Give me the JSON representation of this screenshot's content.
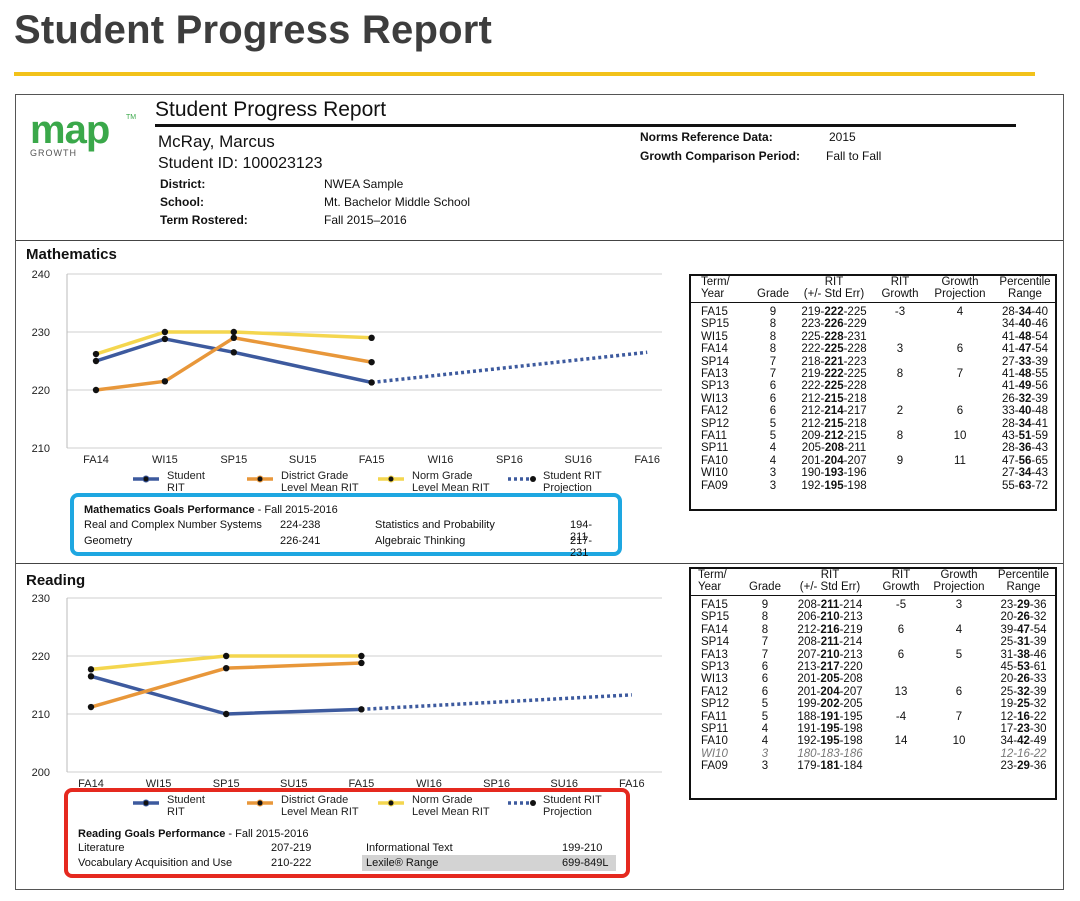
{
  "page_title": "Student Progress Report",
  "report": {
    "logo_text": "map",
    "logo_tm": "TM",
    "logo_sub": "GROWTH",
    "subtitle": "Student Progress Report",
    "student_name": "McRay, Marcus",
    "student_id": "Student ID: 100023123",
    "district_label": "District:",
    "district": "NWEA Sample",
    "school_label": "School:",
    "school": "Mt. Bachelor Middle School",
    "term_label": "Term Rostered:",
    "term": "Fall 2015–2016",
    "norms_label": "Norms Reference Data:",
    "norms": "2015",
    "growth_period_label": "Growth Comparison Period:",
    "growth_period": "Fall to Fall"
  },
  "legend": {
    "student_1": "Student",
    "student_2": "RIT",
    "district_1": "District Grade",
    "district_2": "Level Mean RIT",
    "norm_1": "Norm Grade",
    "norm_2": "Level Mean RIT",
    "proj_1": "Student RIT",
    "proj_2": "Projection"
  },
  "colors": {
    "student": "#3d5a9e",
    "district": "#e8973a",
    "norm": "#f4d64e",
    "highlight_math": "#1ea7e1",
    "highlight_reading": "#e5291f",
    "gold_rule": "#f2c21a"
  },
  "table_headers": {
    "term_1": "Term/",
    "term_2": "Year",
    "grade": "Grade",
    "rit_1": "RIT",
    "rit_2": "(+/- Std Err)",
    "ritg_1": "RIT",
    "ritg_2": "Growth",
    "gp_1": "Growth",
    "gp_2": "Projection",
    "pr_1": "Percentile",
    "pr_2": "Range"
  },
  "mathematics": {
    "title": "Mathematics",
    "table": [
      {
        "term": "FA15",
        "grade": "9",
        "rit": [
          "219-",
          "222",
          "-225"
        ],
        "growth": "-3",
        "proj": "4",
        "pct": [
          "28-",
          "34",
          "-40"
        ]
      },
      {
        "term": "SP15",
        "grade": "8",
        "rit": [
          "223-",
          "226",
          "-229"
        ],
        "growth": "",
        "proj": "",
        "pct": [
          "34-",
          "40",
          "-46"
        ]
      },
      {
        "term": "WI15",
        "grade": "8",
        "rit": [
          "225-",
          "228",
          "-231"
        ],
        "growth": "",
        "proj": "",
        "pct": [
          "41-",
          "48",
          "-54"
        ]
      },
      {
        "term": "FA14",
        "grade": "8",
        "rit": [
          "222-",
          "225",
          "-228"
        ],
        "growth": "3",
        "proj": "6",
        "pct": [
          "41-",
          "47",
          "-54"
        ]
      },
      {
        "term": "SP14",
        "grade": "7",
        "rit": [
          "218-",
          "221",
          "-223"
        ],
        "growth": "",
        "proj": "",
        "pct": [
          "27-",
          "33",
          "-39"
        ]
      },
      {
        "term": "FA13",
        "grade": "7",
        "rit": [
          "219-",
          "222",
          "-225"
        ],
        "growth": "8",
        "proj": "7",
        "pct": [
          "41-",
          "48",
          "-55"
        ]
      },
      {
        "term": "SP13",
        "grade": "6",
        "rit": [
          "222-",
          "225",
          "-228"
        ],
        "growth": "",
        "proj": "",
        "pct": [
          "41-",
          "49",
          "-56"
        ]
      },
      {
        "term": "WI13",
        "grade": "6",
        "rit": [
          "212-",
          "215",
          "-218"
        ],
        "growth": "",
        "proj": "",
        "pct": [
          "26-",
          "32",
          "-39"
        ]
      },
      {
        "term": "FA12",
        "grade": "6",
        "rit": [
          "212-",
          "214",
          "-217"
        ],
        "growth": "2",
        "proj": "6",
        "pct": [
          "33-",
          "40",
          "-48"
        ]
      },
      {
        "term": "SP12",
        "grade": "5",
        "rit": [
          "212-",
          "215",
          "-218"
        ],
        "growth": "",
        "proj": "",
        "pct": [
          "28-",
          "34",
          "-41"
        ]
      },
      {
        "term": "FA11",
        "grade": "5",
        "rit": [
          "209-",
          "212",
          "-215"
        ],
        "growth": "8",
        "proj": "10",
        "pct": [
          "43-",
          "51",
          "-59"
        ]
      },
      {
        "term": "SP11",
        "grade": "4",
        "rit": [
          "205-",
          "208",
          "-211"
        ],
        "growth": "",
        "proj": "",
        "pct": [
          "28-",
          "36",
          "-43"
        ]
      },
      {
        "term": "FA10",
        "grade": "4",
        "rit": [
          "201-",
          "204",
          "-207"
        ],
        "growth": "9",
        "proj": "11",
        "pct": [
          "47-",
          "56",
          "-65"
        ]
      },
      {
        "term": "WI10",
        "grade": "3",
        "rit": [
          "190-",
          "193",
          "-196"
        ],
        "growth": "",
        "proj": "",
        "pct": [
          "27-",
          "34",
          "-43"
        ]
      },
      {
        "term": "FA09",
        "grade": "3",
        "rit": [
          "192-",
          "195",
          "-198"
        ],
        "growth": "",
        "proj": "",
        "pct": [
          "55-",
          "63",
          "-72"
        ]
      }
    ],
    "goals_title": "Mathematics Goals Performance",
    "goals_term": " - Fall 2015-2016",
    "goals": [
      {
        "name": "Real and Complex Number Systems",
        "range": "224-238"
      },
      {
        "name": "Statistics and Probability",
        "range": "194-211"
      },
      {
        "name": "Geometry",
        "range": "226-241"
      },
      {
        "name": "Algebraic Thinking",
        "range": "217-231"
      }
    ]
  },
  "reading": {
    "title": "Reading",
    "table": [
      {
        "term": "FA15",
        "grade": "9",
        "rit": [
          "208-",
          "211",
          "-214"
        ],
        "growth": "-5",
        "proj": "3",
        "pct": [
          "23-",
          "29",
          "-36"
        ]
      },
      {
        "term": "SP15",
        "grade": "8",
        "rit": [
          "206-",
          "210",
          "-213"
        ],
        "growth": "",
        "proj": "",
        "pct": [
          "20-",
          "26",
          "-32"
        ]
      },
      {
        "term": "FA14",
        "grade": "8",
        "rit": [
          "212-",
          "216",
          "-219"
        ],
        "growth": "6",
        "proj": "4",
        "pct": [
          "39-",
          "47",
          "-54"
        ]
      },
      {
        "term": "SP14",
        "grade": "7",
        "rit": [
          "208-",
          "211",
          "-214"
        ],
        "growth": "",
        "proj": "",
        "pct": [
          "25-",
          "31",
          "-39"
        ]
      },
      {
        "term": "FA13",
        "grade": "7",
        "rit": [
          "207-",
          "210",
          "-213"
        ],
        "growth": "6",
        "proj": "5",
        "pct": [
          "31-",
          "38",
          "-46"
        ]
      },
      {
        "term": "SP13",
        "grade": "6",
        "rit": [
          "213-",
          "217",
          "-220"
        ],
        "growth": "",
        "proj": "",
        "pct": [
          "45-",
          "53",
          "-61"
        ]
      },
      {
        "term": "WI13",
        "grade": "6",
        "rit": [
          "201-",
          "205",
          "-208"
        ],
        "growth": "",
        "proj": "",
        "pct": [
          "20-",
          "26",
          "-33"
        ]
      },
      {
        "term": "FA12",
        "grade": "6",
        "rit": [
          "201-",
          "204",
          "-207"
        ],
        "growth": "13",
        "proj": "6",
        "pct": [
          "25-",
          "32",
          "-39"
        ]
      },
      {
        "term": "SP12",
        "grade": "5",
        "rit": [
          "199-",
          "202",
          "-205"
        ],
        "growth": "",
        "proj": "",
        "pct": [
          "19-",
          "25",
          "-32"
        ]
      },
      {
        "term": "FA11",
        "grade": "5",
        "rit": [
          "188-",
          "191",
          "-195"
        ],
        "growth": "-4",
        "proj": "7",
        "pct": [
          "12-",
          "16",
          "-22"
        ]
      },
      {
        "term": "SP11",
        "grade": "4",
        "rit": [
          "191-",
          "195",
          "-198"
        ],
        "growth": "",
        "proj": "",
        "pct": [
          "17-",
          "23",
          "-30"
        ]
      },
      {
        "term": "FA10",
        "grade": "4",
        "rit": [
          "192-",
          "195",
          "-198"
        ],
        "growth": "14",
        "proj": "10",
        "pct": [
          "34-",
          "42",
          "-49"
        ]
      },
      {
        "term": "WI10",
        "grade": "3",
        "rit": [
          "180-",
          "183",
          "-186"
        ],
        "growth": "",
        "proj": "",
        "pct": [
          "12-",
          "16",
          "-22"
        ],
        "dim": true
      },
      {
        "term": "FA09",
        "grade": "3",
        "rit": [
          "179-",
          "181",
          "-184"
        ],
        "growth": "",
        "proj": "",
        "pct": [
          "23-",
          "29",
          "-36"
        ]
      }
    ],
    "goals_title": "Reading Goals Performance",
    "goals_term": " - Fall 2015-2016",
    "goals": [
      {
        "name": "Literature",
        "range": "207-219"
      },
      {
        "name": "Informational Text",
        "range": "199-210"
      },
      {
        "name": "Vocabulary Acquisition and Use",
        "range": "210-222"
      },
      {
        "name": "Lexile® Range",
        "range": "699-849L"
      }
    ]
  },
  "chart_data": [
    {
      "type": "line",
      "title": "Mathematics",
      "categories": [
        "FA14",
        "WI15",
        "SP15",
        "SU15",
        "FA15",
        "WI16",
        "SP16",
        "SU16",
        "FA16"
      ],
      "ylim": [
        210,
        240
      ],
      "yticks": [
        210,
        220,
        230,
        240
      ],
      "series": [
        {
          "name": "Student RIT",
          "color": "#3d5a9e",
          "values": [
            225,
            228.8,
            226.5,
            null,
            221.3,
            null,
            null,
            null,
            null
          ]
        },
        {
          "name": "District Grade Level Mean RIT",
          "color": "#e8973a",
          "values": [
            220,
            221.5,
            229,
            null,
            224.8,
            null,
            null,
            null,
            null
          ]
        },
        {
          "name": "Norm Grade Level Mean RIT",
          "color": "#f4d64e",
          "values": [
            226.2,
            230,
            230,
            null,
            229,
            null,
            null,
            null,
            null
          ]
        },
        {
          "name": "Student RIT Projection",
          "color": "#3d5a9e",
          "dashed": true,
          "values": [
            null,
            null,
            null,
            null,
            221.3,
            null,
            null,
            null,
            226.5
          ]
        }
      ]
    },
    {
      "type": "line",
      "title": "Reading",
      "categories": [
        "FA14",
        "WI15",
        "SP15",
        "SU15",
        "FA15",
        "WI16",
        "SP16",
        "SU16",
        "FA16"
      ],
      "ylim": [
        200,
        230
      ],
      "yticks": [
        200,
        210,
        220,
        230
      ],
      "series": [
        {
          "name": "Student RIT",
          "color": "#3d5a9e",
          "values": [
            216.5,
            null,
            210,
            null,
            210.8,
            null,
            null,
            null,
            null
          ]
        },
        {
          "name": "District Grade Level Mean RIT",
          "color": "#e8973a",
          "values": [
            211.2,
            null,
            217.9,
            null,
            218.8,
            null,
            null,
            null,
            null
          ]
        },
        {
          "name": "Norm Grade Level Mean RIT",
          "color": "#f4d64e",
          "values": [
            217.7,
            null,
            220,
            null,
            220,
            null,
            null,
            null,
            null
          ]
        },
        {
          "name": "Student RIT Projection",
          "color": "#3d5a9e",
          "dashed": true,
          "values": [
            null,
            null,
            null,
            null,
            210.8,
            null,
            null,
            null,
            213.3
          ]
        }
      ]
    }
  ]
}
